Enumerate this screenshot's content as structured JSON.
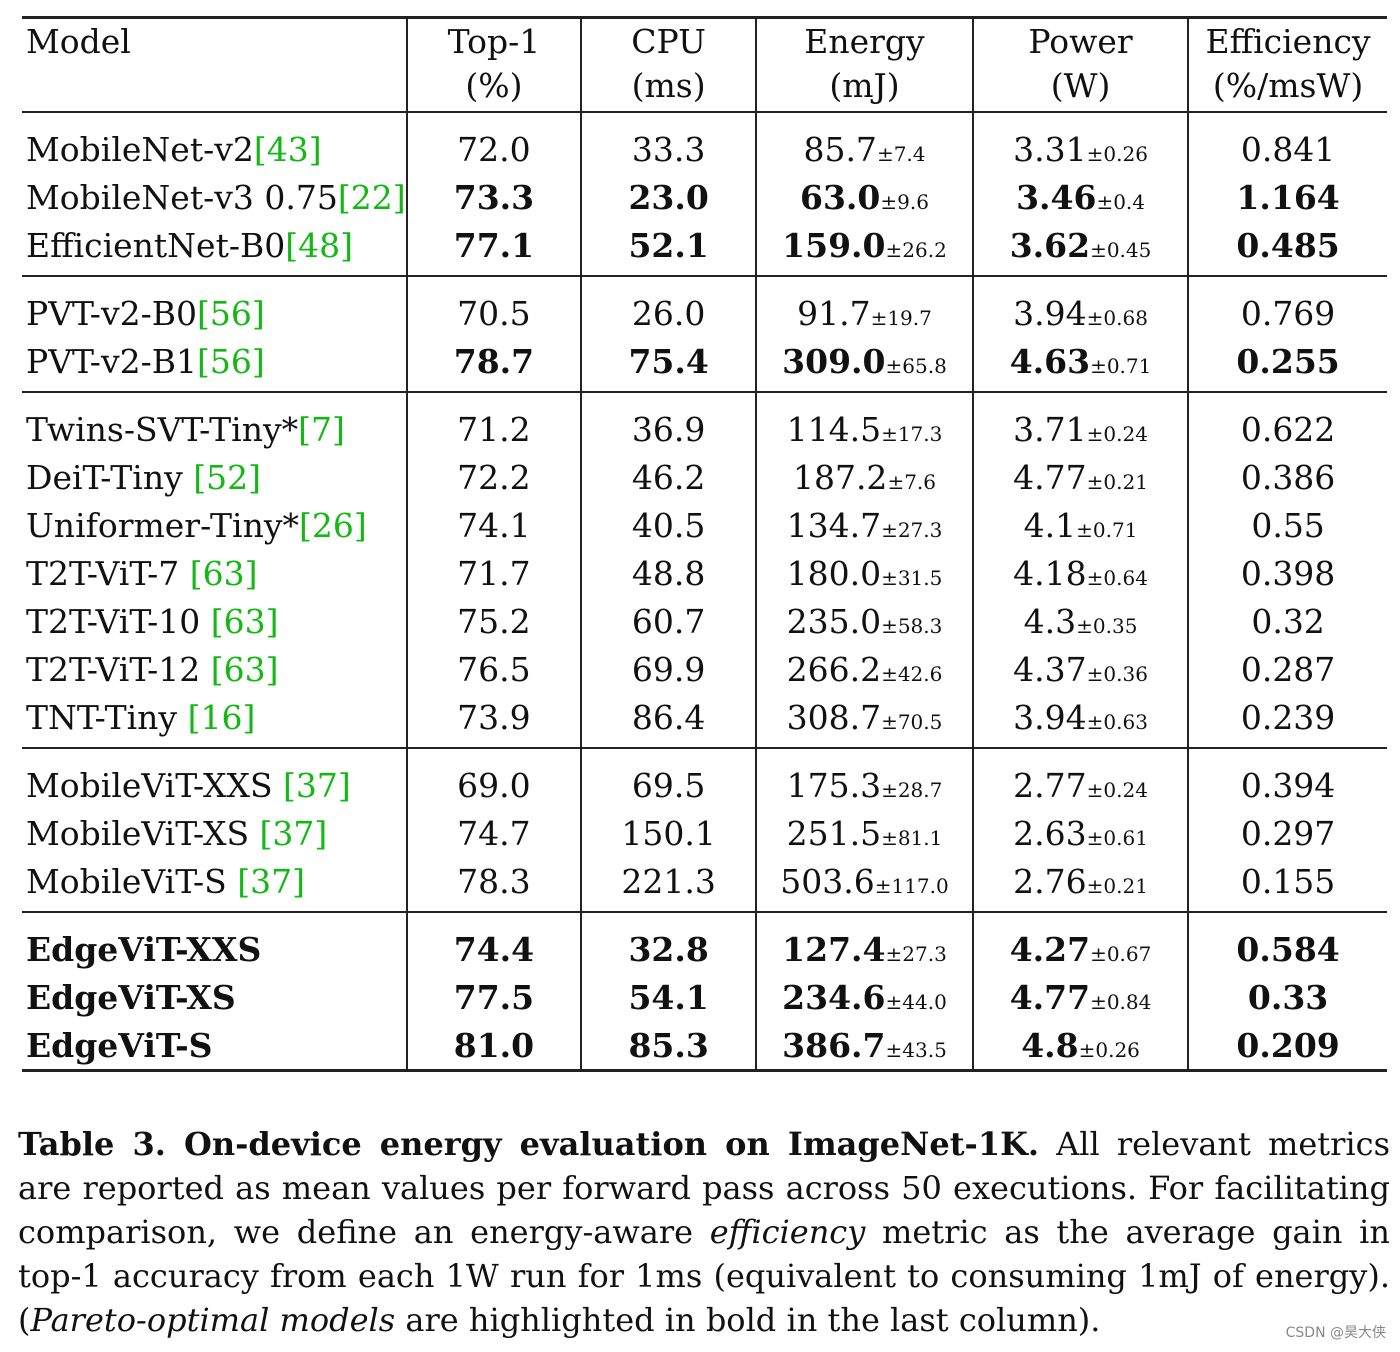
{
  "headers": [
    {
      "l1": "Model",
      "l2": ""
    },
    {
      "l1": "Top-1",
      "l2": "(%)"
    },
    {
      "l1": "CPU",
      "l2": "(ms)"
    },
    {
      "l1": "Energy",
      "l2": "(mJ)"
    },
    {
      "l1": "Power",
      "l2": "(W)"
    },
    {
      "l1": "Efficiency",
      "l2": "(%/msW)"
    }
  ],
  "groups": [
    [
      {
        "model": "MobileNet-v2",
        "ref": "[43]",
        "top1": "72.0",
        "cpu": "33.3",
        "energy": "85.7",
        "energy_pm": "±7.4",
        "power": "3.31",
        "power_pm": "±0.26",
        "eff": "0.841",
        "bold": false
      },
      {
        "model": "MobileNet-v3 0.75",
        "ref": "[22]",
        "top1": "73.3",
        "cpu": "23.0",
        "energy": "63.0",
        "energy_pm": "±9.6",
        "power": "3.46",
        "power_pm": "±0.4",
        "eff": "1.164",
        "bold": true
      },
      {
        "model": "EfficientNet-B0",
        "ref": "[48]",
        "top1": "77.1",
        "cpu": "52.1",
        "energy": "159.0",
        "energy_pm": "±26.2",
        "power": "3.62",
        "power_pm": "±0.45",
        "eff": "0.485",
        "bold": true
      }
    ],
    [
      {
        "model": "PVT-v2-B0",
        "ref": "[56]",
        "top1": "70.5",
        "cpu": "26.0",
        "energy": "91.7",
        "energy_pm": "±19.7",
        "power": "3.94",
        "power_pm": "±0.68",
        "eff": "0.769",
        "bold": false
      },
      {
        "model": "PVT-v2-B1",
        "ref": "[56]",
        "top1": "78.7",
        "cpu": "75.4",
        "energy": "309.0",
        "energy_pm": "±65.8",
        "power": "4.63",
        "power_pm": "±0.71",
        "eff": "0.255",
        "bold": true
      }
    ],
    [
      {
        "model": "Twins-SVT-Tiny*",
        "ref": "[7]",
        "top1": "71.2",
        "cpu": "36.9",
        "energy": "114.5",
        "energy_pm": "±17.3",
        "power": "3.71",
        "power_pm": "±0.24",
        "eff": "0.622",
        "bold": false
      },
      {
        "model": "DeiT-Tiny ",
        "ref": "[52]",
        "top1": "72.2",
        "cpu": "46.2",
        "energy": "187.2",
        "energy_pm": "±7.6",
        "power": "4.77",
        "power_pm": "±0.21",
        "eff": "0.386",
        "bold": false
      },
      {
        "model": "Uniformer-Tiny*",
        "ref": "[26]",
        "top1": "74.1",
        "cpu": "40.5",
        "energy": "134.7",
        "energy_pm": "±27.3",
        "power": "4.1",
        "power_pm": "±0.71",
        "eff": "0.55",
        "bold": false
      },
      {
        "model": "T2T-ViT-7 ",
        "ref": "[63]",
        "top1": "71.7",
        "cpu": "48.8",
        "energy": "180.0",
        "energy_pm": "±31.5",
        "power": "4.18",
        "power_pm": "±0.64",
        "eff": "0.398",
        "bold": false
      },
      {
        "model": "T2T-ViT-10 ",
        "ref": "[63]",
        "top1": "75.2",
        "cpu": "60.7",
        "energy": "235.0",
        "energy_pm": "±58.3",
        "power": "4.3",
        "power_pm": "±0.35",
        "eff": "0.32",
        "bold": false
      },
      {
        "model": "T2T-ViT-12 ",
        "ref": "[63]",
        "top1": "76.5",
        "cpu": "69.9",
        "energy": "266.2",
        "energy_pm": "±42.6",
        "power": "4.37",
        "power_pm": "±0.36",
        "eff": "0.287",
        "bold": false
      },
      {
        "model": "TNT-Tiny ",
        "ref": "[16]",
        "top1": "73.9",
        "cpu": "86.4",
        "energy": "308.7",
        "energy_pm": "±70.5",
        "power": "3.94",
        "power_pm": "±0.63",
        "eff": "0.239",
        "bold": false
      }
    ],
    [
      {
        "model": "MobileViT-XXS ",
        "ref": "[37]",
        "top1": "69.0",
        "cpu": "69.5",
        "energy": "175.3",
        "energy_pm": "±28.7",
        "power": "2.77",
        "power_pm": "±0.24",
        "eff": "0.394",
        "bold": false
      },
      {
        "model": "MobileViT-XS ",
        "ref": "[37]",
        "top1": "74.7",
        "cpu": "150.1",
        "energy": "251.5",
        "energy_pm": "±81.1",
        "power": "2.63",
        "power_pm": "±0.61",
        "eff": "0.297",
        "bold": false
      },
      {
        "model": "MobileViT-S ",
        "ref": "[37]",
        "top1": "78.3",
        "cpu": "221.3",
        "energy": "503.6",
        "energy_pm": "±117.0",
        "power": "2.76",
        "power_pm": "±0.21",
        "eff": "0.155",
        "bold": false
      }
    ],
    [
      {
        "model": "EdgeViT-XXS",
        "ref": "",
        "top1": "74.4",
        "cpu": "32.8",
        "energy": "127.4",
        "energy_pm": "±27.3",
        "power": "4.27",
        "power_pm": "±0.67",
        "eff": "0.584",
        "bold": true,
        "boldModel": true
      },
      {
        "model": "EdgeViT-XS",
        "ref": "",
        "top1": "77.5",
        "cpu": "54.1",
        "energy": "234.6",
        "energy_pm": "±44.0",
        "power": "4.77",
        "power_pm": "±0.84",
        "eff": "0.33",
        "bold": true,
        "boldModel": true
      },
      {
        "model": "EdgeViT-S",
        "ref": "",
        "top1": "81.0",
        "cpu": "85.3",
        "energy": "386.7",
        "energy_pm": "±43.5",
        "power": "4.8",
        "power_pm": "±0.26",
        "eff": "0.209",
        "bold": true,
        "boldModel": true
      }
    ]
  ],
  "caption": {
    "title": "Table 3. On-device energy evaluation on ImageNet-1K.",
    "text1": " All relevant metrics are reported as mean values per forward pass across 50 executions. For facilitating comparison, we define an energy-aware ",
    "italic1": "efficiency",
    "text2": " metric as the average gain in top-1 accuracy from each 1W run for 1ms (equivalent to consuming 1mJ of energy). (",
    "italic2": "Pareto-optimal models",
    "text3": " are highlighted in bold in the last column)."
  },
  "watermark": "CSDN @昊大侠"
}
